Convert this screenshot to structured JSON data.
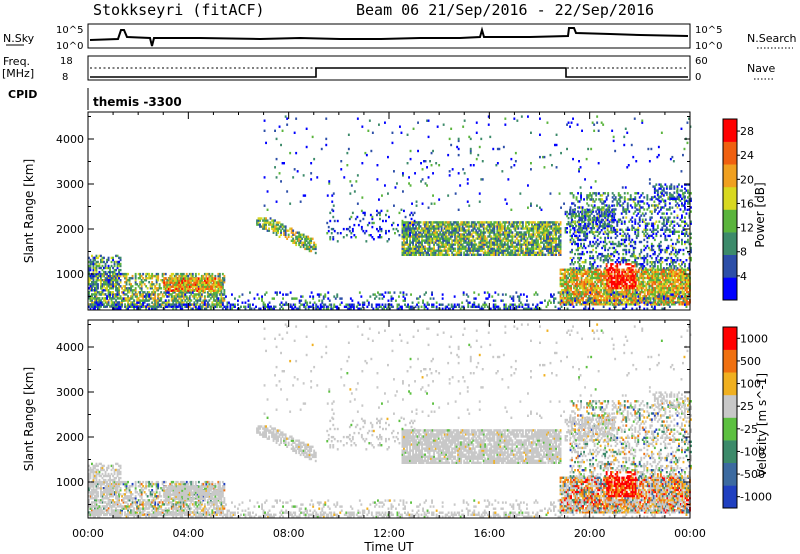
{
  "header": {
    "station": "Stokkseyri (fitACF)",
    "beam_info": "Beam 06  21/Sep/2016 - 22/Sep/2016"
  },
  "status_panels": {
    "nsky_label": "N.Sky",
    "nsky_ticks": [
      "10^5",
      "10^0"
    ],
    "nsearch_label": "N.Search",
    "nsearch_ticks": [
      "10^5",
      "10^0"
    ],
    "freq_label": "Freq.",
    "freq_unit": "[MHz]",
    "freq_ticks": [
      "18",
      "8"
    ],
    "nave_label": "Nave",
    "nave_ticks": [
      "60",
      "0"
    ],
    "cpid_label": "CPID",
    "cpid_value": "themis -3300"
  },
  "chart_data": [
    {
      "type": "heatmap",
      "parameter": "Power",
      "ylabel": "Slant Range [km]",
      "xlabel": "Time UT",
      "xlim_hours": [
        0,
        24
      ],
      "ylim_km": [
        200,
        4600
      ],
      "x_ticks": [
        "00:00",
        "04:00",
        "08:00",
        "12:00",
        "16:00",
        "20:00",
        "00:00"
      ],
      "y_ticks": [
        1000,
        2000,
        3000,
        4000
      ],
      "colorbar": {
        "label": "Power [dB]",
        "ticks": [
          4,
          8,
          12,
          16,
          20,
          24,
          28
        ],
        "range": [
          0,
          30
        ],
        "colors": [
          "#0000ff",
          "#2c4ea8",
          "#3c8a6a",
          "#5ab43c",
          "#d8d820",
          "#f0a020",
          "#f06010",
          "#ff0000"
        ]
      }
    },
    {
      "type": "heatmap",
      "parameter": "Velocity",
      "ylabel": "Slant Range [km]",
      "xlabel": "Time UT",
      "xlim_hours": [
        0,
        24
      ],
      "ylim_km": [
        200,
        4600
      ],
      "x_ticks": [
        "00:00",
        "04:00",
        "08:00",
        "12:00",
        "16:00",
        "20:00",
        "00:00"
      ],
      "y_ticks": [
        1000,
        2000,
        3000,
        4000
      ],
      "colorbar": {
        "label": "Velocity [m s^-1]",
        "ticks": [
          "1000",
          "500",
          "100",
          "25",
          "-25",
          "-100",
          "-500",
          "-1000"
        ],
        "colors": [
          "#2040c0",
          "#3c6aa0",
          "#3c8a6a",
          "#5cc040",
          "#c8c8c8",
          "#f0b020",
          "#f07010",
          "#ff0000"
        ]
      }
    }
  ]
}
